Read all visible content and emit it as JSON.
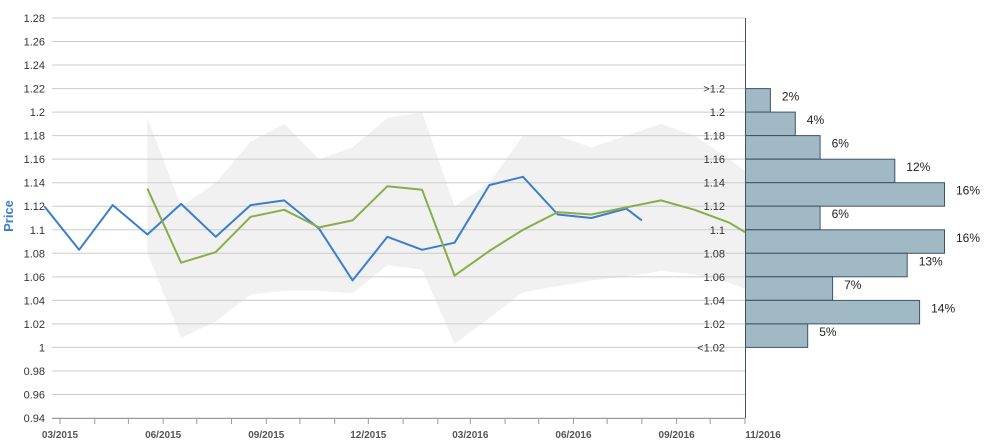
{
  "chart_data": {
    "type": "line",
    "ylabel": "Price",
    "ylim": [
      0.94,
      1.28
    ],
    "y_ticks": [
      "0.94",
      "0.96",
      "0.98",
      "1",
      "1.02",
      "1.04",
      "1.06",
      "1.08",
      "1.1",
      "1.12",
      "1.14",
      "1.16",
      "1.18",
      "1.2",
      "1.22",
      "1.24",
      "1.26",
      "1.28"
    ],
    "x_ticks": [
      "03/2015",
      "06/2015",
      "09/2015",
      "12/2015",
      "03/2016",
      "06/2016",
      "09/2016",
      "11/2016"
    ],
    "grid": true,
    "colors": {
      "historical": "#3a7fcc",
      "forecast": "#8aac4a",
      "band": "#ececec",
      "histogram_fill": "#a1b8c5",
      "histogram_stroke": "#3c5566",
      "axis_title": "#3a7fcc",
      "grid": "#cccccc"
    },
    "series": [
      {
        "key": "historical",
        "x": [
          "2015-03",
          "2015-04",
          "2015-05",
          "2015-06",
          "2015-07",
          "2015-08",
          "2015-09",
          "2015-10",
          "2015-11",
          "2015-12",
          "2016-01",
          "2016-02",
          "2016-03",
          "2016-04",
          "2016-05",
          "2016-06",
          "2016-07",
          "2016-08",
          "2016-08-15"
        ],
        "values": [
          1.12,
          1.083,
          1.121,
          1.096,
          1.122,
          1.094,
          1.121,
          1.125,
          1.101,
          1.057,
          1.094,
          1.083,
          1.089,
          1.138,
          1.145,
          1.113,
          1.11,
          1.118,
          1.108
        ]
      },
      {
        "key": "forecast",
        "x": [
          "2015-06",
          "2015-07",
          "2015-08",
          "2015-09",
          "2015-10",
          "2015-11",
          "2015-12",
          "2016-01",
          "2016-02",
          "2016-03",
          "2016-04",
          "2016-05",
          "2016-06",
          "2016-07",
          "2016-08",
          "2016-09",
          "2016-10",
          "2016-11",
          "2016-11-15"
        ],
        "values": [
          1.135,
          1.072,
          1.081,
          1.111,
          1.117,
          1.102,
          1.108,
          1.137,
          1.134,
          1.061,
          1.082,
          1.1,
          1.115,
          1.113,
          1.119,
          1.125,
          1.117,
          1.106,
          1.098
        ]
      }
    ],
    "band": {
      "x": [
        "2015-06",
        "2015-07",
        "2015-08",
        "2015-09",
        "2015-10",
        "2015-11",
        "2015-12",
        "2016-01",
        "2016-02",
        "2016-03",
        "2016-04",
        "2016-05",
        "2016-06",
        "2016-07",
        "2016-08",
        "2016-09",
        "2016-10",
        "2016-11",
        "2016-11-15"
      ],
      "upper": [
        1.195,
        1.12,
        1.14,
        1.175,
        1.19,
        1.16,
        1.17,
        1.195,
        1.2,
        1.12,
        1.14,
        1.18,
        1.18,
        1.17,
        1.18,
        1.19,
        1.18,
        1.16,
        1.15
      ],
      "lower": [
        1.08,
        1.008,
        1.022,
        1.045,
        1.048,
        1.048,
        1.046,
        1.07,
        1.066,
        1.003,
        1.025,
        1.047,
        1.052,
        1.057,
        1.06,
        1.065,
        1.062,
        1.055,
        1.05
      ]
    },
    "distribution": {
      "bins": [
        {
          "label": ">1.2",
          "value": 1.21,
          "pct": "2%",
          "share": 2
        },
        {
          "label": "1.2",
          "value": 1.19,
          "pct": "4%",
          "share": 4
        },
        {
          "label": "1.18",
          "value": 1.17,
          "pct": "6%",
          "share": 6
        },
        {
          "label": "1.16",
          "value": 1.15,
          "pct": "12%",
          "share": 12
        },
        {
          "label": "1.14",
          "value": 1.13,
          "pct": "16%",
          "share": 16
        },
        {
          "label": "1.12",
          "value": 1.11,
          "pct": "6%",
          "share": 6
        },
        {
          "label": "1.1",
          "value": 1.09,
          "pct": "16%",
          "share": 16
        },
        {
          "label": "1.08",
          "value": 1.07,
          "pct": "13%",
          "share": 13
        },
        {
          "label": "1.06",
          "value": 1.05,
          "pct": "7%",
          "share": 7
        },
        {
          "label": "1.04",
          "value": 1.03,
          "pct": "14%",
          "share": 14
        },
        {
          "label": "1.02",
          "value": 1.01,
          "pct": "5%",
          "share": 5
        },
        {
          "label": "<1.02",
          "value": 0.99,
          "pct": "",
          "share": 0
        }
      ]
    }
  }
}
